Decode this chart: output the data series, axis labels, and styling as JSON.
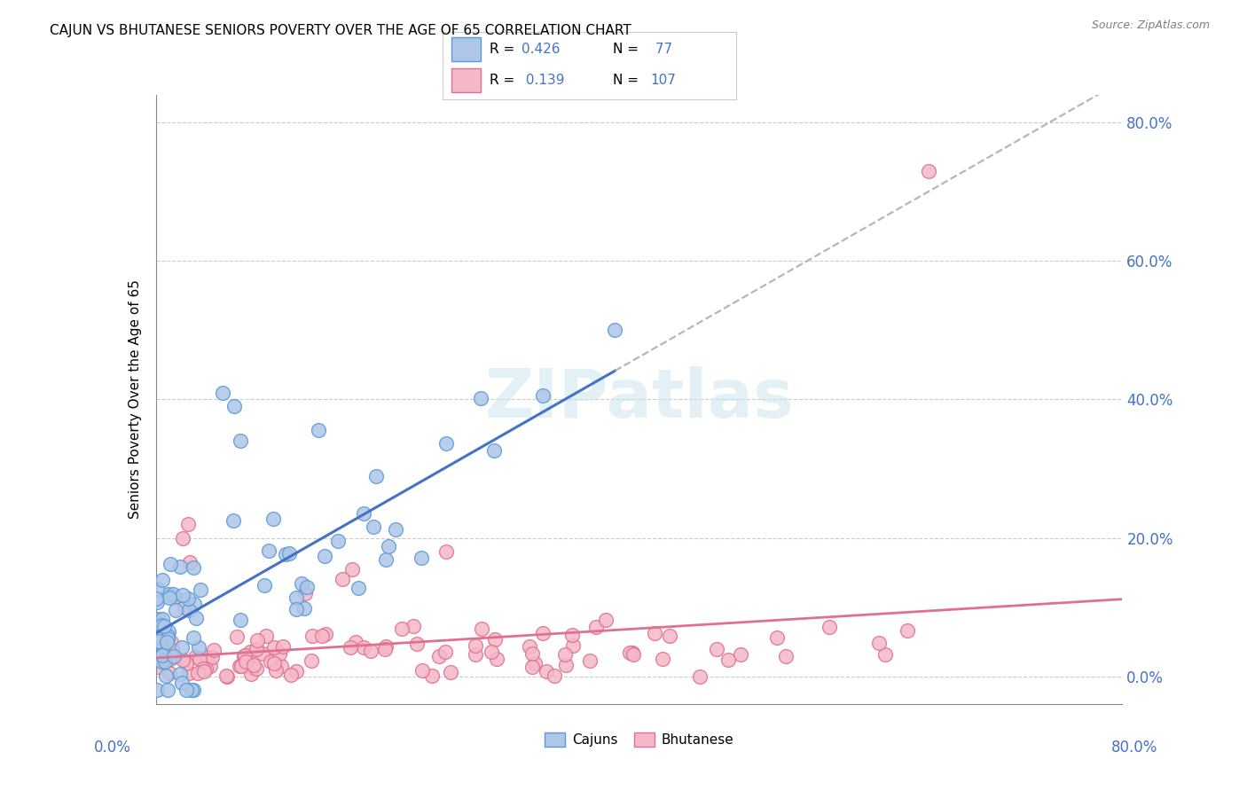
{
  "title": "CAJUN VS BHUTANESE SENIORS POVERTY OVER THE AGE OF 65 CORRELATION CHART",
  "source": "Source: ZipAtlas.com",
  "ylabel": "Seniors Poverty Over the Age of 65",
  "xlim": [
    0,
    0.8
  ],
  "ylim": [
    -0.04,
    0.84
  ],
  "ytick_labels": [
    "0.0%",
    "20.0%",
    "40.0%",
    "60.0%",
    "80.0%"
  ],
  "ytick_values": [
    0.0,
    0.2,
    0.4,
    0.6,
    0.8
  ],
  "xtick_labels": [
    "0.0%",
    "80.0%"
  ],
  "xtick_values": [
    0.0,
    0.8
  ],
  "cajuns_color": "#aec6e8",
  "cajuns_edge_color": "#5b9bd5",
  "bhutanese_color": "#f4b8c8",
  "bhutanese_edge_color": "#e07090",
  "cajuns_line_color": "#4472c4",
  "bhutanese_line_color": "#e07090",
  "dashed_line_color": "#aaaaaa",
  "cajuns_R": 0.426,
  "cajuns_N": 77,
  "bhutanese_R": 0.139,
  "bhutanese_N": 107,
  "watermark": "ZIPatlas",
  "background_color": "#ffffff",
  "grid_color": "#cccccc",
  "title_fontsize": 11,
  "legend_text_color": "#4472c4",
  "label_color": "#4472c4",
  "scatter_size": 130
}
